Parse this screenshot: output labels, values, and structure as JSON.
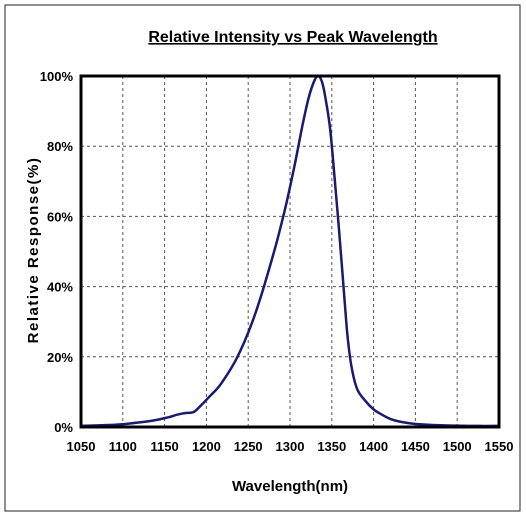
{
  "chart_data": {
    "type": "line",
    "title": "Relative Intensity vs Peak Wavelength",
    "xlabel": "Wavelength(nm)",
    "ylabel": "Relative Response(%)",
    "xlim": [
      1050,
      1550
    ],
    "ylim": [
      0,
      100
    ],
    "x_ticks": [
      1050,
      1100,
      1150,
      1200,
      1250,
      1300,
      1350,
      1400,
      1450,
      1500,
      1550
    ],
    "x_tick_labels": [
      "1050",
      "1100",
      "1150",
      "1200",
      "1250",
      "1300",
      "1350",
      "1400",
      "1450",
      "1500",
      "1550"
    ],
    "y_ticks": [
      0,
      20,
      40,
      60,
      80,
      100
    ],
    "y_tick_labels": [
      "0%",
      "20%",
      "40%",
      "60%",
      "80%",
      "100%"
    ],
    "grid": true,
    "legend": "none",
    "series": [
      {
        "color": "#1a1a6e",
        "x": [
          1050,
          1075,
          1100,
          1120,
          1140,
          1155,
          1165,
          1175,
          1185,
          1195,
          1205,
          1215,
          1225,
          1235,
          1245,
          1255,
          1265,
          1275,
          1285,
          1295,
          1305,
          1315,
          1322,
          1328,
          1333,
          1338,
          1343,
          1348,
          1353,
          1358,
          1363,
          1368,
          1373,
          1380,
          1390,
          1400,
          1410,
          1420,
          1430,
          1445,
          1460,
          1480,
          1500,
          1525,
          1550
        ],
        "y": [
          0.3,
          0.5,
          0.8,
          1.3,
          2.0,
          2.8,
          3.5,
          4.0,
          4.3,
          6.5,
          9.0,
          11.5,
          15.0,
          19.0,
          24.0,
          30.0,
          37.0,
          45.0,
          53.5,
          63.0,
          74.0,
          86.0,
          93.5,
          98.0,
          100.0,
          98.5,
          93.0,
          85.0,
          72.0,
          58.0,
          43.0,
          28.0,
          18.0,
          11.0,
          7.5,
          5.0,
          3.5,
          2.3,
          1.6,
          1.0,
          0.7,
          0.5,
          0.4,
          0.3,
          0.3
        ]
      }
    ]
  }
}
